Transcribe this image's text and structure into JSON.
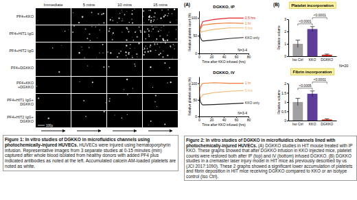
{
  "figure1": {
    "columns": [
      "Immediate",
      "5 mins",
      "10 mins",
      "15 mins"
    ],
    "rows": [
      "PF4+KKO",
      "PF4+HIT1 IgG",
      "PF4+HIT2 IgG",
      "PF4+DGKKO",
      "PF4+KKO +DGKKO",
      "PF4+HIT1 IgG+ DGKKO",
      "PF4+HIT2 IgG+ DGKKO"
    ],
    "scale_bar": "100µ",
    "caption": {
      "bold": "Figure 1: In vitro studies of DGKKO in microfluidics channels using photochemically-injured HUVECs.",
      "text": "HUVECs were injured using hematoporphyrin infusion. Representative images from 3 separate studies at 0-15 minutes (min) captured after whole blood isolated from healthy donors with added PF4 plus indicated antibodies as noted at the left. Accumulated calcein AM-loaded platelets are noted as white."
    }
  },
  "figure2": {
    "panels": [
      "(A)",
      "(B)"
    ],
    "caption": {
      "bold": "Figure 2: In vitro studies of DGKKO in microfluidics channels lined with photochemically-injured HUVECs.",
      "text": "(A) DGKKO studies in HIT mouse treated with IP KKO. These graphs showed that after DGKKO infusion in KKO injected mice, platelet counts were restored both after IP (top) and IV (bottom) infused DGKKO. (B) DGKKO studies in a cremaster laser injury model in HIT mice as previously described by us (JCI 2017:1090). These 2 graphs showed a significant lower accumulation of platelets and fibrin deposition in HIT mice receiving DGKKO compared to KKO or an isotype control (Iso Ctrl)."
    }
  },
  "chart_data": [
    {
      "type": "line",
      "title": "DGKKO, IP",
      "x_label": "Time after KKO infused (hrs)",
      "y_label": "Relative platelet count (%)",
      "annotation": "N=3-4",
      "x": [
        0,
        1,
        2,
        4,
        6,
        24,
        48,
        72
      ],
      "xlim": [
        0,
        80
      ],
      "xticks": [
        0,
        20,
        40,
        60,
        80
      ],
      "ylim": [
        0,
        120
      ],
      "yticks": [
        0,
        50,
        100
      ],
      "series": [
        {
          "name": "0.5 hrs",
          "color": "#e8202a",
          "values": [
            100,
            62,
            70,
            82,
            90,
            96,
            100,
            100
          ]
        },
        {
          "name": "1 hr",
          "color": "#f07a30",
          "values": [
            100,
            70,
            68,
            75,
            80,
            84,
            86,
            85
          ]
        },
        {
          "name": "5 hrs",
          "color": "#f6b26b",
          "values": [
            100,
            75,
            65,
            60,
            62,
            68,
            72,
            72
          ]
        },
        {
          "name": "KKO only",
          "color": "#222222",
          "values": [
            100,
            60,
            45,
            38,
            35,
            38,
            42,
            45
          ]
        }
      ]
    },
    {
      "type": "line",
      "title": "DGKKO, IV",
      "x_label": "Time after KKO infused (hrs)",
      "y_label": "Relative platelet count (%)",
      "annotation": "N=3-4",
      "x": [
        0,
        1,
        2,
        4,
        6,
        24,
        48,
        72
      ],
      "xlim": [
        0,
        80
      ],
      "xticks": [
        0,
        20,
        40,
        60,
        80
      ],
      "ylim": [
        0,
        120
      ],
      "yticks": [
        0,
        50,
        100
      ],
      "series": [
        {
          "name": "1 hr",
          "color": "#f07a30",
          "values": [
            100,
            75,
            88,
            96,
            100,
            102,
            100,
            100
          ]
        },
        {
          "name": "5 hrs",
          "color": "#f6b26b",
          "values": [
            100,
            60,
            55,
            60,
            66,
            72,
            76,
            78
          ]
        },
        {
          "name": "KKO only",
          "color": "#222222",
          "values": [
            100,
            58,
            45,
            38,
            35,
            36,
            38,
            40
          ]
        }
      ]
    },
    {
      "type": "bar",
      "title": "Platelet incorporation",
      "y_label": "Relative volume",
      "annotation": "N=20",
      "categories": [
        "Iso Ctrl",
        "KKO",
        "DGKKO"
      ],
      "values": [
        1.0,
        2.2,
        0.12
      ],
      "errors": [
        0.3,
        0.2,
        0.05
      ],
      "colors": [
        "#a0a0a0",
        "#5e3c99",
        "#d7301f"
      ],
      "ylim": [
        0,
        3
      ],
      "yticks": [
        0,
        1,
        2,
        3
      ],
      "comparisons": [
        {
          "a": "Iso Ctrl",
          "b": "KKO",
          "label": "<0.0001"
        },
        {
          "a": "KKO",
          "b": "DGKKO",
          "label": "<0.0001"
        }
      ]
    },
    {
      "type": "bar",
      "title": "Fibrin incorporation",
      "y_label": "Relative volume",
      "categories": [
        "Iso Ctrl",
        "KKO",
        "DGKKO"
      ],
      "values": [
        1.0,
        1.45,
        0.06
      ],
      "errors": [
        0.2,
        0.15,
        0.03
      ],
      "colors": [
        "#a0a0a0",
        "#5e3c99",
        "#d7301f"
      ],
      "ylim": [
        0,
        2
      ],
      "yticks": [
        0,
        0.5,
        1,
        1.5,
        2
      ],
      "comparisons": [
        {
          "a": "Iso Ctrl",
          "b": "KKO",
          "label": "<0.0005"
        },
        {
          "a": "KKO",
          "b": "DGKKO",
          "label": "<0.0001"
        }
      ]
    }
  ]
}
